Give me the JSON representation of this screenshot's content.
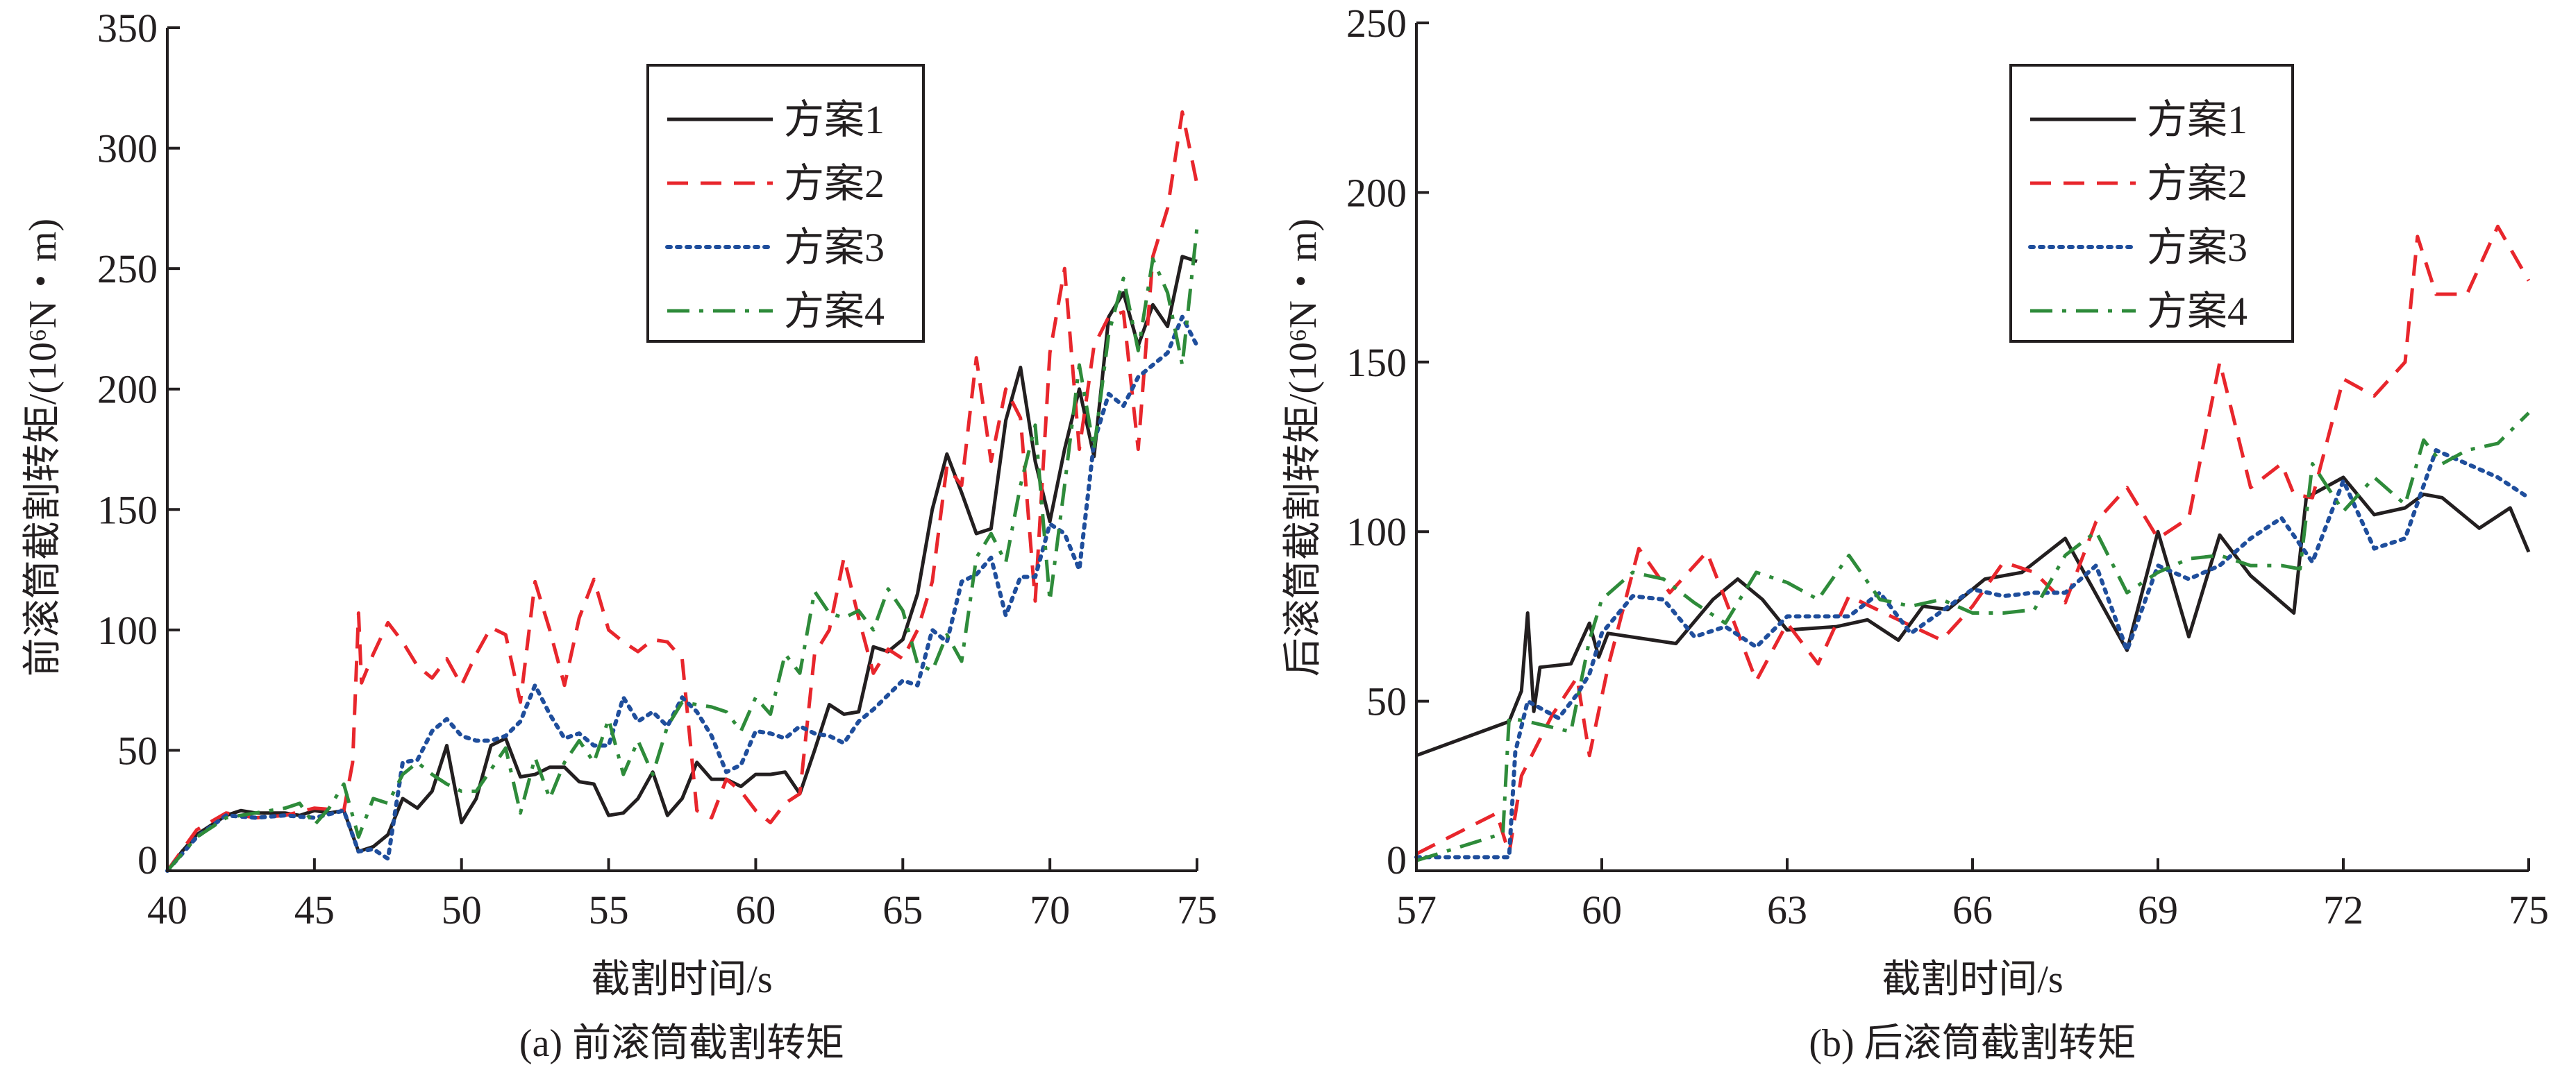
{
  "chart_data": [
    {
      "type": "line",
      "title": "",
      "caption": "(a) 前滚筒截割转矩",
      "xlabel": "截割时间/s",
      "ylabel": "前滚筒截割转矩/(10⁶N・m)",
      "xlim": [
        40,
        75
      ],
      "ylim": [
        0,
        350
      ],
      "xticks": [
        40,
        45,
        50,
        55,
        60,
        65,
        70,
        75
      ],
      "yticks": [
        0,
        50,
        100,
        150,
        200,
        250,
        300,
        350
      ],
      "grid": false,
      "legend_position": "top-center",
      "series": [
        {
          "name": "方案1",
          "color": "#231f20",
          "style": "solid",
          "x": [
            40,
            40.5,
            41,
            41.5,
            42,
            42.5,
            43,
            44,
            44.5,
            45,
            45.5,
            46,
            46.5,
            47,
            47.5,
            48,
            48.5,
            49,
            49.5,
            50,
            50.5,
            51,
            51.5,
            52,
            52.5,
            53,
            53.5,
            54,
            54.5,
            55,
            55.5,
            56,
            56.5,
            57,
            57.5,
            58,
            58.5,
            59,
            59.5,
            60,
            60.5,
            61,
            61.5,
            62,
            62.5,
            63,
            63.5,
            64,
            64.5,
            65,
            65.5,
            66,
            66.5,
            67,
            67.5,
            68,
            68.5,
            69,
            69.5,
            70,
            70.5,
            71,
            71.5,
            72,
            72.5,
            73,
            73.5,
            74,
            74.5,
            75
          ],
          "y": [
            0,
            8,
            15,
            19,
            23,
            25,
            24,
            24,
            23,
            25,
            24,
            25,
            8,
            10,
            15,
            30,
            26,
            33,
            52,
            20,
            30,
            52,
            55,
            39,
            40,
            43,
            43,
            37,
            36,
            23,
            24,
            30,
            41,
            23,
            30,
            45,
            38,
            38,
            35,
            40,
            40,
            41,
            32,
            50,
            69,
            65,
            66,
            93,
            91,
            96,
            115,
            150,
            173,
            157,
            140,
            142,
            187,
            209,
            170,
            145,
            175,
            200,
            172,
            230,
            240,
            218,
            235,
            226,
            255,
            253
          ]
        },
        {
          "name": "方案2",
          "color": "#e8262c",
          "style": "dashed",
          "x": [
            40,
            41,
            42,
            43,
            44,
            45,
            46,
            46.3,
            46.5,
            46.6,
            47,
            47.5,
            48,
            48.5,
            49,
            49.5,
            50,
            50.5,
            51,
            51.5,
            52,
            52.5,
            53,
            53.5,
            54,
            54.5,
            55,
            55.5,
            56,
            56.5,
            57,
            57.5,
            58,
            58.5,
            59,
            59.5,
            60,
            60.5,
            61,
            61.5,
            62,
            62.5,
            63,
            63.5,
            64,
            64.5,
            65,
            65.5,
            66,
            66.5,
            67,
            67.5,
            68,
            68.5,
            69,
            69.5,
            70,
            70.5,
            71,
            71.5,
            72,
            72.5,
            73,
            73.5,
            74,
            74.5,
            75
          ],
          "y": [
            0,
            17,
            24,
            22,
            23,
            26,
            25,
            45,
            107,
            78,
            90,
            103,
            95,
            85,
            80,
            88,
            77,
            90,
            101,
            98,
            70,
            120,
            100,
            77,
            105,
            121,
            100,
            95,
            91,
            96,
            95,
            88,
            25,
            22,
            38,
            33,
            25,
            20,
            28,
            32,
            90,
            100,
            130,
            105,
            82,
            92,
            88,
            100,
            120,
            168,
            160,
            213,
            170,
            200,
            188,
            112,
            215,
            250,
            175,
            218,
            230,
            232,
            175,
            255,
            275,
            315,
            285
          ]
        },
        {
          "name": "方案3",
          "color": "#1f4e9c",
          "style": "dotted",
          "x": [
            40,
            41,
            42,
            43,
            44,
            45,
            46,
            46.5,
            47,
            47.5,
            48,
            48.5,
            49,
            49.5,
            50,
            50.5,
            51,
            51.5,
            52,
            52.5,
            53,
            53.5,
            54,
            54.5,
            55,
            55.5,
            56,
            56.5,
            57,
            57.5,
            58,
            58.5,
            59,
            59.5,
            60,
            60.5,
            61,
            61.5,
            62,
            62.5,
            63,
            63.5,
            64,
            64.5,
            65,
            65.5,
            66,
            66.5,
            67,
            67.5,
            68,
            68.5,
            69,
            69.5,
            70,
            70.5,
            71,
            71.5,
            72,
            72.5,
            73,
            73.5,
            74,
            74.5,
            75
          ],
          "y": [
            0,
            14,
            23,
            22,
            23,
            22,
            25,
            8,
            9,
            5,
            45,
            46,
            58,
            63,
            56,
            54,
            54,
            56,
            62,
            77,
            65,
            55,
            57,
            52,
            52,
            72,
            62,
            66,
            60,
            72,
            66,
            56,
            41,
            44,
            58,
            57,
            55,
            60,
            57,
            56,
            53,
            62,
            67,
            73,
            79,
            77,
            100,
            95,
            120,
            123,
            130,
            106,
            122,
            122,
            144,
            140,
            125,
            178,
            198,
            193,
            205,
            210,
            215,
            230,
            218
          ]
        },
        {
          "name": "方案4",
          "color": "#2e8b3a",
          "style": "dashdot",
          "x": [
            40,
            41,
            42,
            43,
            44,
            44.5,
            45,
            45.5,
            46,
            46.5,
            47,
            47.5,
            48,
            48.5,
            49,
            49.5,
            50,
            50.5,
            51,
            51.5,
            52,
            52.5,
            53,
            53.5,
            54,
            54.5,
            55,
            55.5,
            56,
            56.5,
            57,
            57.5,
            58,
            58.5,
            59,
            59.5,
            60,
            60.5,
            61,
            61.5,
            62,
            62.5,
            63,
            63.5,
            64,
            64.5,
            65,
            65.5,
            66,
            66.5,
            67,
            67.5,
            68,
            68.5,
            69,
            69.5,
            70,
            70.5,
            71,
            71.5,
            72,
            72.5,
            73,
            73.5,
            74,
            74.5,
            75
          ],
          "y": [
            0,
            14,
            22,
            24,
            26,
            28,
            19,
            26,
            36,
            14,
            30,
            28,
            40,
            45,
            40,
            36,
            33,
            33,
            42,
            51,
            24,
            47,
            30,
            45,
            54,
            45,
            63,
            40,
            54,
            40,
            60,
            70,
            69,
            68,
            66,
            58,
            72,
            65,
            90,
            82,
            116,
            107,
            105,
            108,
            100,
            117,
            108,
            86,
            83,
            98,
            87,
            130,
            140,
            128,
            160,
            185,
            112,
            160,
            210,
            175,
            223,
            246,
            216,
            254,
            240,
            210,
            267
          ]
        }
      ]
    },
    {
      "type": "line",
      "title": "",
      "caption": "(b) 后滚筒截割转矩",
      "xlabel": "截割时间/s",
      "ylabel": "后滚筒截割转矩/(10⁶N・m)",
      "xlim": [
        57,
        75
      ],
      "ylim": [
        0,
        250
      ],
      "xticks": [
        57,
        60,
        63,
        66,
        69,
        72,
        75
      ],
      "yticks": [
        0,
        50,
        100,
        150,
        200,
        250
      ],
      "grid": false,
      "legend_position": "top-right",
      "series": [
        {
          "name": "方案1",
          "color": "#231f20",
          "style": "solid",
          "x": [
            57,
            58.5,
            58.7,
            58.8,
            58.9,
            59,
            59.5,
            59.8,
            59.95,
            60.1,
            61.2,
            61.8,
            62.2,
            62.6,
            63,
            63.8,
            64.3,
            64.8,
            65.2,
            65.6,
            66.2,
            66.8,
            67.5,
            68.5,
            69,
            69.5,
            70,
            70.5,
            71.2,
            71.4,
            72,
            72.5,
            73,
            73.3,
            73.6,
            74.2,
            74.7,
            75
          ],
          "y": [
            34,
            44,
            53,
            76,
            47,
            60,
            61,
            73,
            63,
            70,
            67,
            80,
            86,
            80,
            71,
            72,
            74,
            68,
            78,
            77,
            86,
            88,
            98,
            65,
            100,
            69,
            99,
            87,
            76,
            110,
            116,
            105,
            107,
            111,
            110,
            101,
            107,
            94
          ]
        },
        {
          "name": "方案2",
          "color": "#e8262c",
          "style": "dashed",
          "x": [
            57,
            58.3,
            58.5,
            58.7,
            59.2,
            59.6,
            59.8,
            60.1,
            60.6,
            61.1,
            61.7,
            62,
            62.5,
            63,
            63.5,
            64,
            64.8,
            65.5,
            66,
            66.5,
            67,
            67.5,
            68,
            68.5,
            69,
            69.5,
            70,
            70.5,
            71,
            71.2,
            71.5,
            72,
            72.5,
            73,
            73.2,
            73.5,
            74,
            74.5,
            75
          ],
          "y": [
            5,
            17,
            5,
            28,
            46,
            57,
            34,
            60,
            95,
            82,
            94,
            80,
            56,
            73,
            61,
            81,
            74,
            68,
            78,
            91,
            88,
            79,
            103,
            113,
            98,
            104,
            150,
            113,
            120,
            111,
            110,
            145,
            140,
            150,
            187,
            170,
            170,
            190,
            174
          ]
        },
        {
          "name": "方案3",
          "color": "#1f4e9c",
          "style": "dotted",
          "x": [
            57,
            58,
            58.5,
            58.6,
            58.8,
            59.3,
            59.6,
            59.8,
            60,
            60.5,
            61,
            61.5,
            62,
            62.5,
            63,
            64,
            64.5,
            65,
            66,
            66.5,
            67,
            67.5,
            68,
            68.5,
            69,
            69.5,
            70,
            70.5,
            71,
            71.5,
            72,
            72.5,
            73,
            73.5,
            74,
            74.5,
            75
          ],
          "y": [
            4,
            4,
            4,
            35,
            50,
            45,
            52,
            58,
            70,
            81,
            80,
            69,
            72,
            66,
            75,
            75,
            82,
            70,
            83,
            81,
            82,
            82,
            90,
            65,
            90,
            86,
            90,
            98,
            104,
            91,
            115,
            95,
            98,
            124,
            120,
            116,
            110
          ]
        },
        {
          "name": "方案4",
          "color": "#2e8b3a",
          "style": "dashdot",
          "x": [
            57,
            58.4,
            58.5,
            58.8,
            59.5,
            59.8,
            60,
            60.5,
            61,
            61.5,
            62,
            62.5,
            63,
            63.5,
            64,
            64.5,
            65,
            65.5,
            66,
            66.5,
            67,
            67.5,
            68,
            68.5,
            69,
            69.5,
            70,
            70.5,
            71,
            71.3,
            71.5,
            72,
            72.5,
            73,
            73.3,
            73.6,
            74,
            74.5,
            75
          ],
          "y": [
            3,
            11,
            45,
            44,
            41,
            68,
            80,
            88,
            86,
            79,
            73,
            88,
            85,
            80,
            93,
            80,
            78,
            80,
            76,
            76,
            77,
            93,
            100,
            82,
            88,
            92,
            93,
            90,
            90,
            89,
            120,
            106,
            116,
            108,
            127,
            120,
            124,
            126,
            135
          ]
        }
      ]
    }
  ]
}
